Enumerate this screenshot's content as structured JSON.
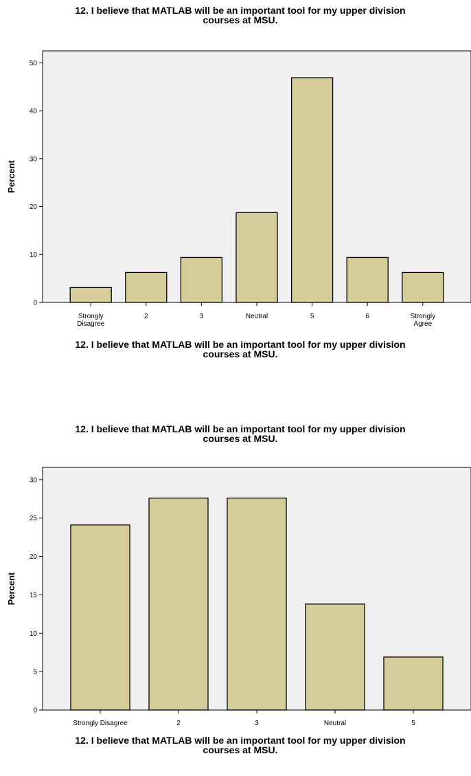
{
  "colors": {
    "bar_fill": "#d4cd9a",
    "plot_bg": "#f0f0f0",
    "stroke": "#000000"
  },
  "chart_data": [
    {
      "type": "bar",
      "title": [
        "12. I believe that MATLAB will be an important tool for my upper division",
        "courses at MSU."
      ],
      "xlabel": [
        "12. I believe that MATLAB will be an important tool for my upper division",
        "courses at MSU."
      ],
      "ylabel": "Percent",
      "categories": [
        [
          "Strongly",
          "Disagree"
        ],
        [
          "2"
        ],
        [
          "3"
        ],
        [
          "Neutral"
        ],
        [
          "5"
        ],
        [
          "6"
        ],
        [
          "Strongly",
          "Agree"
        ]
      ],
      "values": [
        3.1,
        6.25,
        9.4,
        18.75,
        46.9,
        9.4,
        6.25
      ],
      "yticks": [
        0,
        10,
        20,
        30,
        40,
        50
      ],
      "ylim": [
        0,
        52.5
      ],
      "grid": false,
      "legend": "none"
    },
    {
      "type": "bar",
      "title": [
        "12. I believe that MATLAB will be an important tool for my upper division",
        "courses at MSU."
      ],
      "xlabel": [
        "12. I believe that MATLAB will be an important tool for my upper division",
        "courses at MSU."
      ],
      "ylabel": "Percent",
      "categories": [
        [
          "Strongly Disagree"
        ],
        [
          "2"
        ],
        [
          "3"
        ],
        [
          "Neutral"
        ],
        [
          "5"
        ]
      ],
      "values": [
        24.1,
        27.6,
        27.6,
        13.8,
        6.9
      ],
      "yticks": [
        0,
        5,
        10,
        15,
        20,
        25,
        30
      ],
      "ylim": [
        0,
        31.6
      ],
      "grid": false,
      "legend": "none"
    }
  ]
}
